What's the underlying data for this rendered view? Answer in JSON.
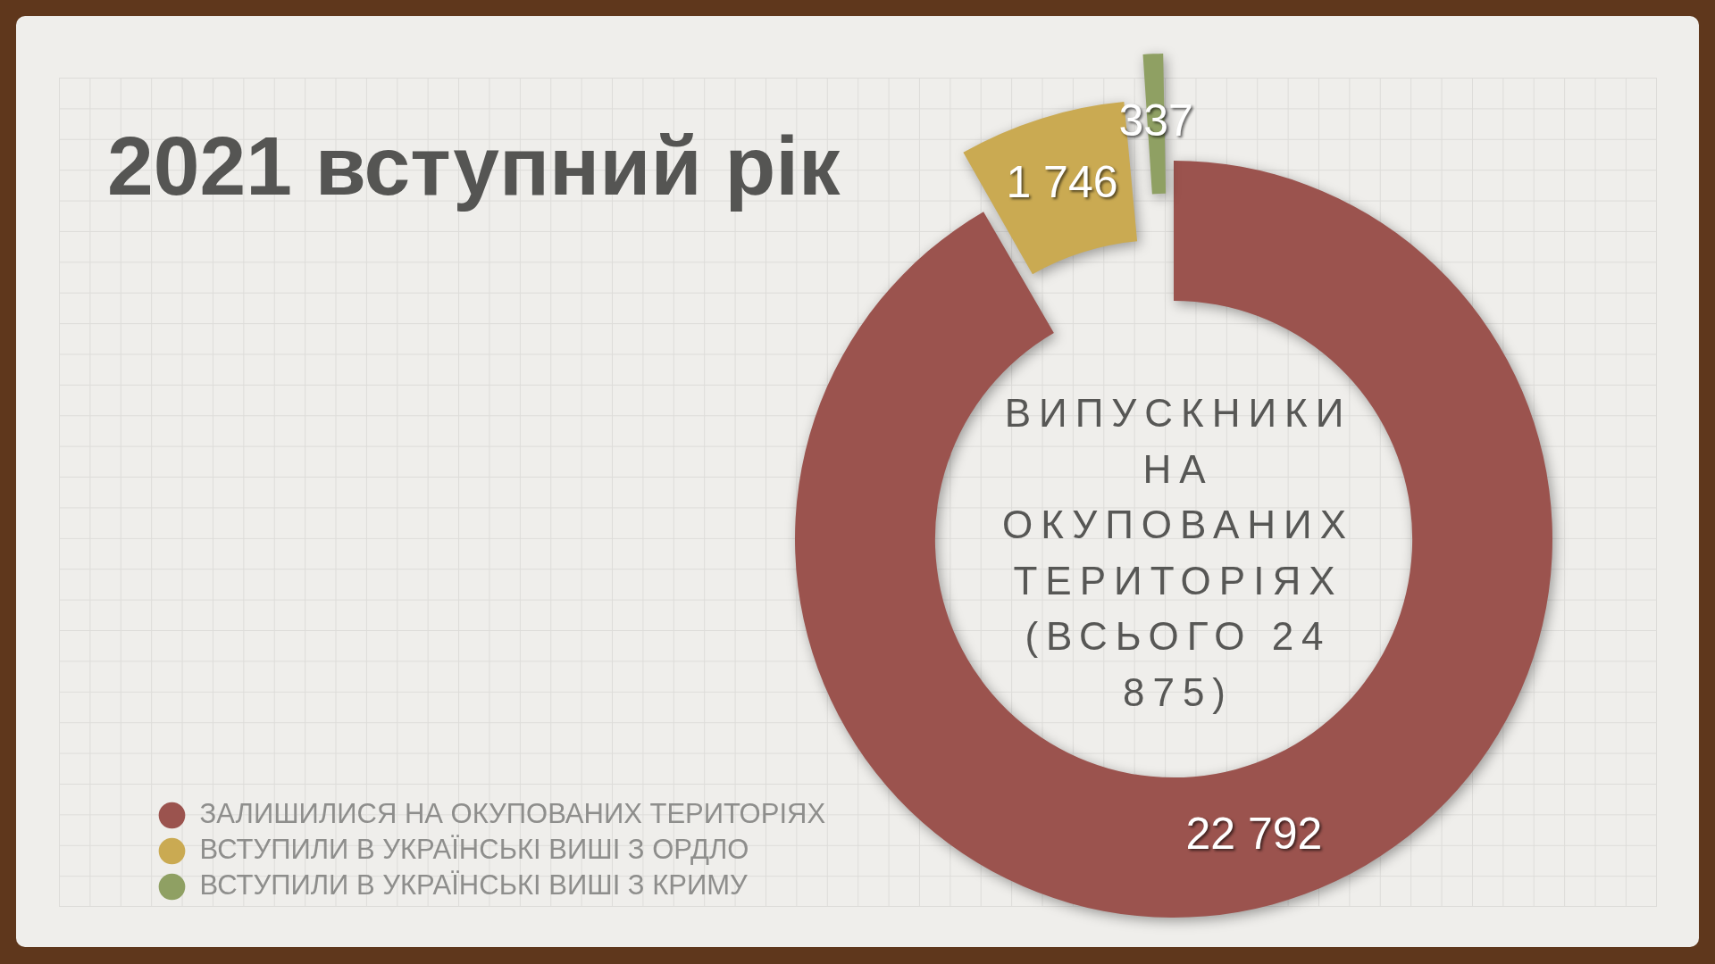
{
  "chart_data": {
    "type": "donut",
    "title": "2021 вступний рік",
    "categories": [
      "ЗАЛИШИЛИСЯ НА ОКУПОВАНИХ ТЕРИТОРІЯХ",
      "ВСТУПИЛИ В УКРАЇНСЬКІ ВИШІ З ОРДЛО",
      "ВСТУПИЛИ В УКРАЇНСЬКІ ВИШІ З КРИМУ"
    ],
    "values": [
      22792,
      1746,
      337
    ],
    "colors": [
      "#9b534e",
      "#caaa52",
      "#8fa063"
    ],
    "value_labels": [
      "22 792",
      "1 746",
      "337"
    ],
    "legend": "bottom left",
    "annotations": [
      "ВИПУСКНИКИ НА ОКУПОВАНИХ ТЕРИТОРІЯХ (ВСЬОГО 24 875)"
    ]
  }
}
